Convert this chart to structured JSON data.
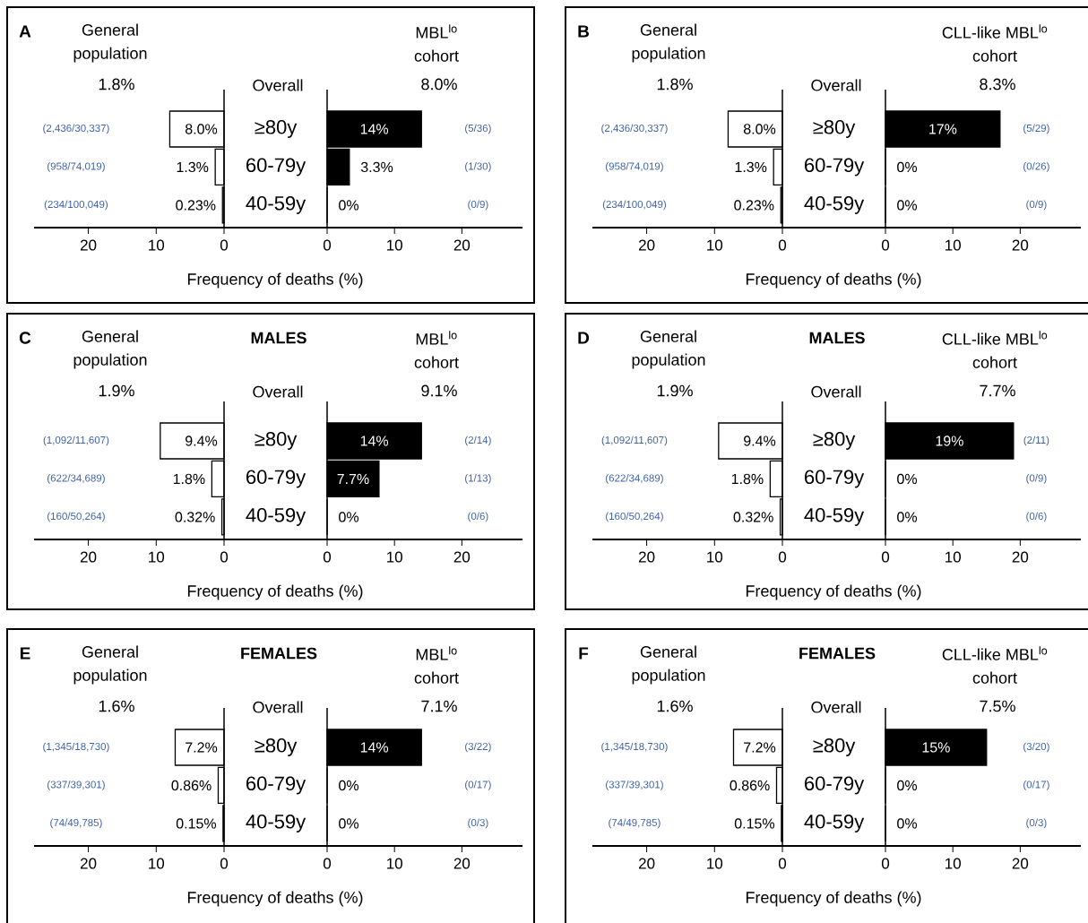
{
  "chart_data": [
    {
      "type": "bar",
      "orientation": "horizontal",
      "title": "General population",
      "xlabel": "Frequency of deaths (%)",
      "categories": [
        "≥80y",
        "60-79y",
        "40-59y"
      ],
      "values": [
        8.0,
        1.3,
        0.23
      ],
      "value_labels": [
        "8.0%",
        "1.3%",
        "0.23%"
      ],
      "color": "#ffffff",
      "xlim": [
        28,
        0
      ],
      "xticks": [
        20,
        10,
        0
      ],
      "annotations": [
        "A",
        "Overall",
        "1.8%",
        "(2,436/30,337)",
        "(958/74,019)",
        "(234/100,049)"
      ]
    },
    {
      "type": "bar",
      "orientation": "horizontal",
      "title": "MBL$^{lo}$ cohort",
      "categories": [
        null,
        null,
        null
      ],
      "values": [
        14,
        3.3,
        0
      ],
      "value_labels": [
        "14%",
        "3.3%",
        "0%"
      ],
      "color": "#000000",
      "xlim": [
        0,
        29
      ],
      "xticks": [
        0,
        10,
        20
      ],
      "annotations": [
        "8.0%",
        "(5/36)",
        "(1/30)",
        "(0/9)"
      ]
    },
    {
      "type": "bar",
      "orientation": "horizontal",
      "title": "General population",
      "xlabel": "Frequency of deaths (%)",
      "categories": [
        "≥80y",
        "60-79y",
        "40-59y"
      ],
      "values": [
        8.0,
        1.3,
        0.23
      ],
      "value_labels": [
        "8.0%",
        "1.3%",
        "0.23%"
      ],
      "color": "#ffffff",
      "xlim": [
        28,
        0
      ],
      "xticks": [
        20,
        10,
        0
      ],
      "annotations": [
        "B",
        "Overall",
        "1.8%",
        "(2,436/30,337)",
        "(958/74,019)",
        "(234/100,049)"
      ]
    },
    {
      "type": "bar",
      "orientation": "horizontal",
      "title": "CLL-like MBL$^{lo}$ cohort",
      "categories": [
        null,
        null,
        null
      ],
      "values": [
        17,
        0,
        0
      ],
      "value_labels": [
        "17%",
        "0%",
        "0%"
      ],
      "color": "#000000",
      "xlim": [
        0,
        29
      ],
      "xticks": [
        0,
        10,
        20
      ],
      "annotations": [
        "8.3%",
        "(5/29)",
        "(0/26)",
        "(0/9)"
      ]
    },
    {
      "type": "bar",
      "orientation": "horizontal",
      "title": "General population",
      "subtitle": "**MALES**",
      "xlabel": "Frequency of deaths (%)",
      "categories": [
        "≥80y",
        "60-79y",
        "40-59y"
      ],
      "values": [
        9.4,
        1.8,
        0.32
      ],
      "value_labels": [
        "9.4%",
        "1.8%",
        "0.32%"
      ],
      "color": "#ffffff",
      "xlim": [
        28,
        0
      ],
      "xticks": [
        20,
        10,
        0
      ],
      "annotations": [
        "C",
        "Overall",
        "1.9%",
        "(1,092/11,607)",
        "(622/34,689)",
        "(160/50,264)"
      ]
    },
    {
      "type": "bar",
      "orientation": "horizontal",
      "title": "MBL$^{lo}$ cohort",
      "categories": [
        null,
        null,
        null
      ],
      "values": [
        14,
        7.7,
        0
      ],
      "value_labels": [
        "14%",
        "7.7%",
        "0%"
      ],
      "color": "#000000",
      "xlim": [
        0,
        29
      ],
      "xticks": [
        0,
        10,
        20
      ],
      "annotations": [
        "9.1%",
        "(2/14)",
        "(1/13)",
        "(0/6)"
      ]
    },
    {
      "type": "bar",
      "orientation": "horizontal",
      "title": "General population",
      "subtitle": "**MALES**",
      "xlabel": "Frequency of deaths (%)",
      "categories": [
        "≥80y",
        "60-79y",
        "40-59y"
      ],
      "values": [
        9.4,
        1.8,
        0.32
      ],
      "value_labels": [
        "9.4%",
        "1.8%",
        "0.32%"
      ],
      "color": "#ffffff",
      "xlim": [
        28,
        0
      ],
      "xticks": [
        20,
        10,
        0
      ],
      "annotations": [
        "D",
        "Overall",
        "1.9%",
        "(1,092/11,607)",
        "(622/34,689)",
        "(160/50,264)"
      ]
    },
    {
      "type": "bar",
      "orientation": "horizontal",
      "title": "CLL-like MBL$^{lo}$ cohort",
      "categories": [
        null,
        null,
        null
      ],
      "values": [
        19,
        0,
        0
      ],
      "value_labels": [
        "19%",
        "0%",
        "0%"
      ],
      "color": "#000000",
      "xlim": [
        0,
        29
      ],
      "xticks": [
        0,
        10,
        20
      ],
      "annotations": [
        "7.7%",
        "(2/11)",
        "(0/9)",
        "(0/6)"
      ]
    },
    {
      "type": "bar",
      "orientation": "horizontal",
      "title": "General population",
      "subtitle": "**FEMALES**",
      "xlabel": "Frequency of deaths (%)",
      "categories": [
        "≥80y",
        "60-79y",
        "40-59y"
      ],
      "values": [
        7.2,
        0.86,
        0.15
      ],
      "value_labels": [
        "7.2%",
        "0.86%",
        "0.15%"
      ],
      "color": "#ffffff",
      "xlim": [
        28,
        0
      ],
      "xticks": [
        20,
        10,
        0
      ],
      "annotations": [
        "E",
        "Overall",
        "1.6%",
        "(1,345/18,730)",
        "(337/39,301)",
        "(74/49,785)"
      ]
    },
    {
      "type": "bar",
      "orientation": "horizontal",
      "title": "MBL$^{lo}$ cohort",
      "categories": [
        null,
        null,
        null
      ],
      "values": [
        14,
        0,
        0
      ],
      "value_labels": [
        "14%",
        "0%",
        "0%"
      ],
      "color": "#000000",
      "xlim": [
        0,
        29
      ],
      "xticks": [
        0,
        10,
        20
      ],
      "annotations": [
        "7.1%",
        "(3/22)",
        "(0/17)",
        "(0/3)"
      ]
    },
    {
      "type": "bar",
      "orientation": "horizontal",
      "title": "General population",
      "subtitle": "**FEMALES**",
      "xlabel": "Frequency of deaths (%)",
      "categories": [
        "≥80y",
        "60-79y",
        "40-59y"
      ],
      "values": [
        7.2,
        0.86,
        0.15
      ],
      "value_labels": [
        "7.2%",
        "0.86%",
        "0.15%"
      ],
      "color": "#ffffff",
      "xlim": [
        28,
        0
      ],
      "xticks": [
        20,
        10,
        0
      ],
      "annotations": [
        "F",
        "Overall",
        "1.6%",
        "(1,345/18,730)",
        "(337/39,301)",
        "(74/49,785)"
      ]
    },
    {
      "type": "bar",
      "orientation": "horizontal",
      "title": "CLL-like MBL$^{lo}$ cohort",
      "categories": [
        null,
        null,
        null
      ],
      "values": [
        15,
        0,
        0
      ],
      "value_labels": [
        "15%",
        "0%",
        "0%"
      ],
      "color": "#000000",
      "xlim": [
        0,
        29
      ],
      "xticks": [
        0,
        10,
        20
      ],
      "annotations": [
        "7.5%",
        "(3/20)",
        "(0/17)",
        "(0/3)"
      ]
    }
  ]
}
